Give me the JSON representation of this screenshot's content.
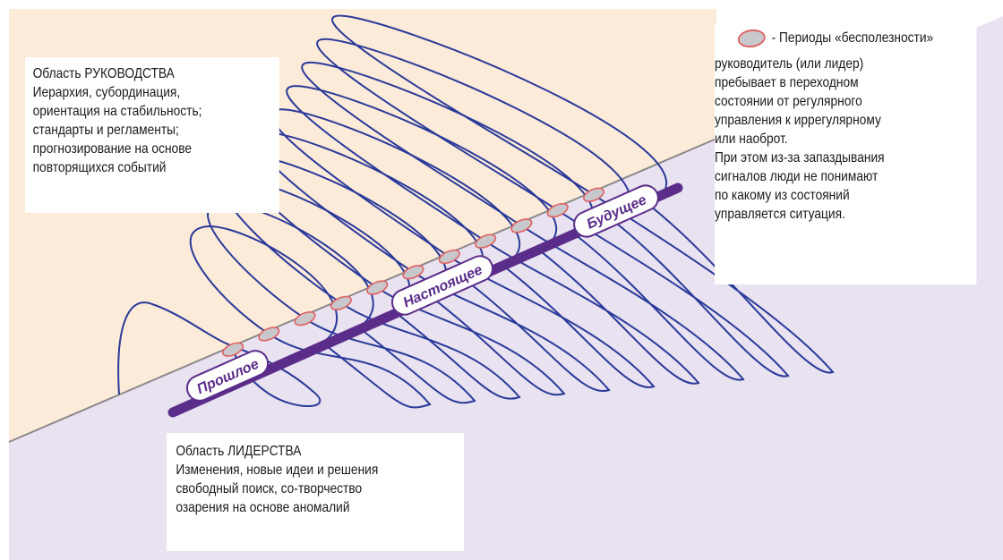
{
  "colors": {
    "upper_region": "#fcebd9",
    "lower_region": "#e9e2f0",
    "boundary": "#8a8a8a",
    "time_axis": "#5a2d8a",
    "oscillation": "#2a3a9a",
    "marker_fill": "#c8c8cc",
    "marker_stroke": "#e06060"
  },
  "management": {
    "title": "Область РУКОВОДСТВА",
    "lines": [
      "Иерархия, субординация,",
      "ориентация на стабильность;",
      "стандарты и регламенты;",
      "прогнозирование на основе",
      "повторящихся событий"
    ]
  },
  "leadership": {
    "title": "Область ЛИДЕРСТВА",
    "lines": [
      "Изменения, новые идеи и решения",
      "свободный поиск, со-творчество",
      "озарения на основе аномалий"
    ]
  },
  "legend": {
    "title": "- Периоды «бесполезности»",
    "lines": [
      "руководитель (или лидер)",
      "пребывает в переходном",
      "состоянии от регулярного",
      "управления к иррегулярному",
      "или наоброт.",
      "При этом из-за запаздывания",
      "сигналов люди не понимают",
      "по какому из состояний",
      "управляется ситуация."
    ]
  },
  "timeline": {
    "past": "Прошлое",
    "present": "Настоящее",
    "future": "Будущее"
  },
  "oscillation_count": 11
}
